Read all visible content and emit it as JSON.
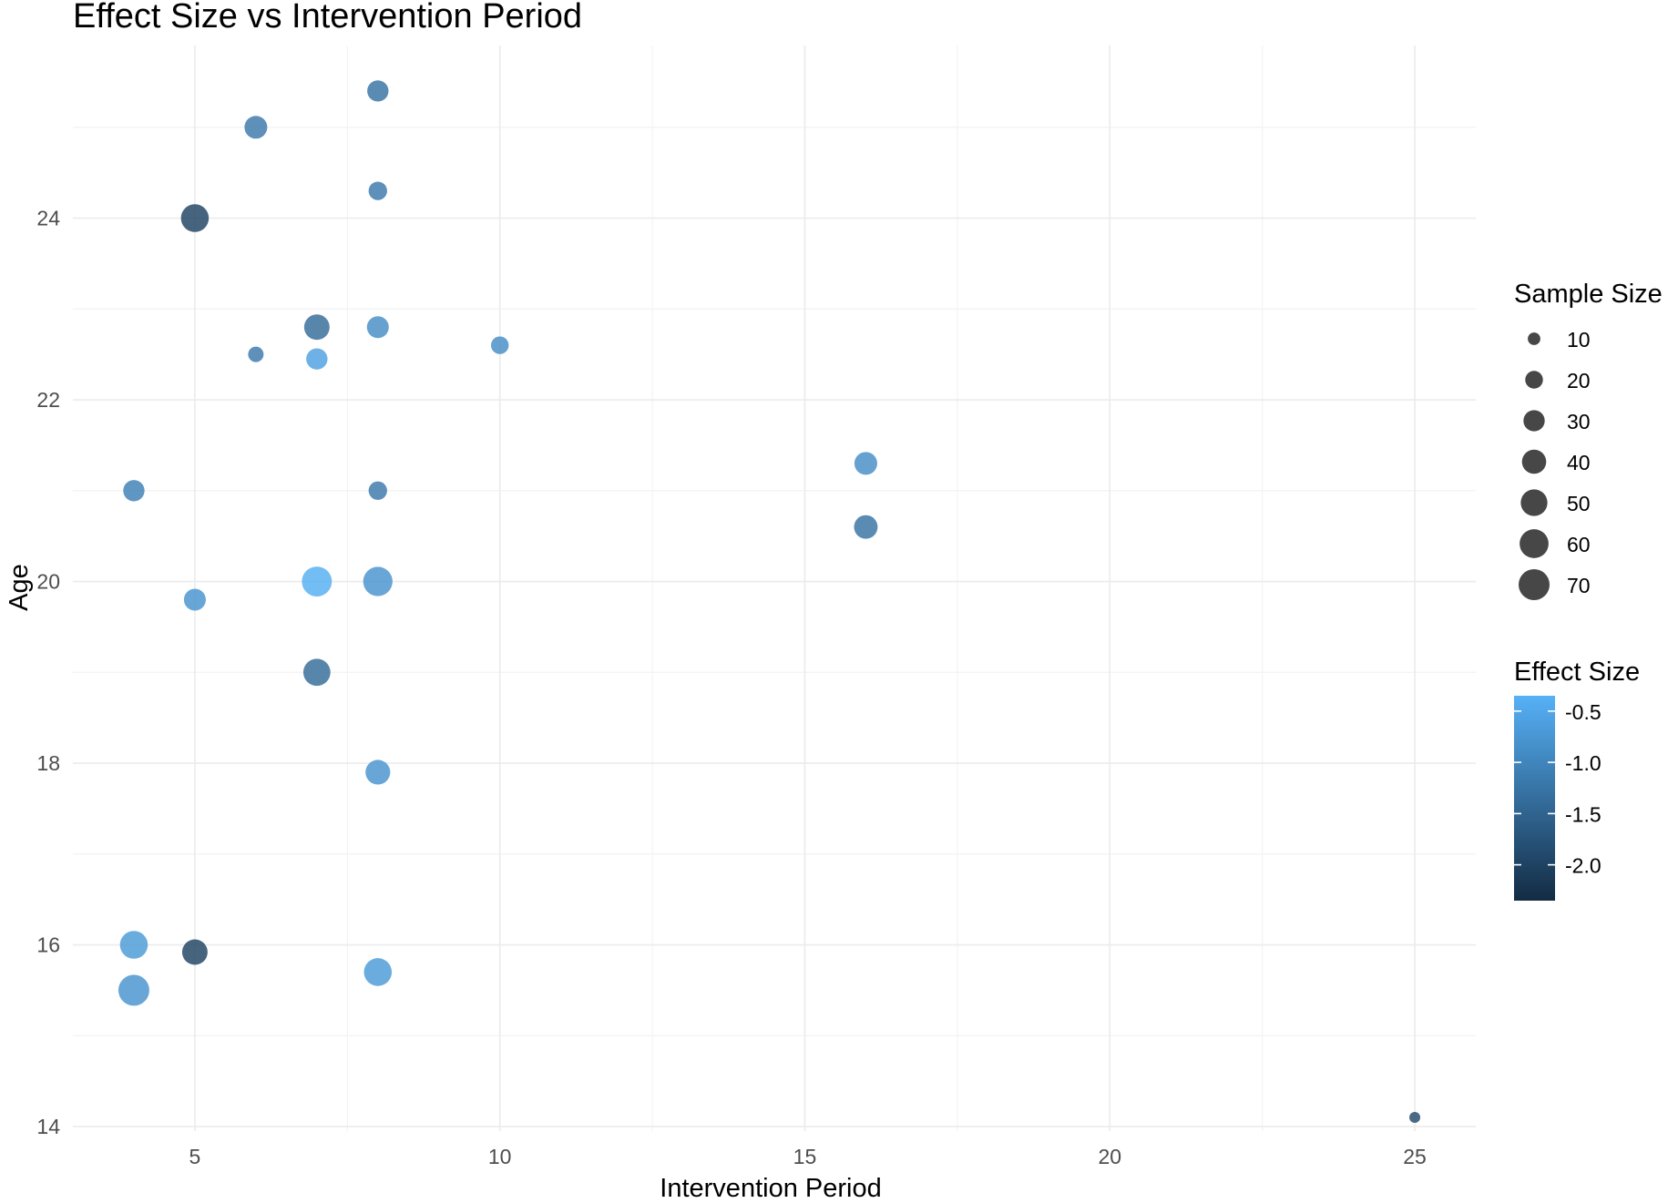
{
  "chart_data": {
    "type": "scatter",
    "title": "Effect Size vs Intervention Period",
    "xlabel": "Intervention Period",
    "ylabel": "Age",
    "xlim": [
      3,
      26
    ],
    "ylim": [
      13.95,
      25.9
    ],
    "x_ticks": [
      5,
      10,
      15,
      20,
      25
    ],
    "y_ticks": [
      14,
      16,
      18,
      20,
      22,
      24
    ],
    "grid": true,
    "points": [
      {
        "x": 8,
        "y": 25.4,
        "size": 30,
        "effect": -1.3
      },
      {
        "x": 6,
        "y": 25.0,
        "size": 35,
        "effect": -1.2
      },
      {
        "x": 8,
        "y": 24.3,
        "size": 22,
        "effect": -1.2
      },
      {
        "x": 5,
        "y": 24.0,
        "size": 55,
        "effect": -2.0
      },
      {
        "x": 7,
        "y": 22.8,
        "size": 45,
        "effect": -1.4
      },
      {
        "x": 8,
        "y": 22.8,
        "size": 32,
        "effect": -0.9
      },
      {
        "x": 6,
        "y": 22.5,
        "size": 15,
        "effect": -1.2
      },
      {
        "x": 7,
        "y": 22.45,
        "size": 30,
        "effect": -0.6
      },
      {
        "x": 10,
        "y": 22.6,
        "size": 20,
        "effect": -0.9
      },
      {
        "x": 16,
        "y": 21.3,
        "size": 35,
        "effect": -0.9
      },
      {
        "x": 4,
        "y": 21.0,
        "size": 30,
        "effect": -1.1
      },
      {
        "x": 8,
        "y": 21.0,
        "size": 22,
        "effect": -1.2
      },
      {
        "x": 16,
        "y": 20.6,
        "size": 38,
        "effect": -1.3
      },
      {
        "x": 7,
        "y": 20.0,
        "size": 65,
        "effect": -0.4
      },
      {
        "x": 8,
        "y": 20.0,
        "size": 62,
        "effect": -0.8
      },
      {
        "x": 5,
        "y": 19.8,
        "size": 32,
        "effect": -0.8
      },
      {
        "x": 7,
        "y": 19.0,
        "size": 52,
        "effect": -1.4
      },
      {
        "x": 8,
        "y": 17.9,
        "size": 42,
        "effect": -0.8
      },
      {
        "x": 4,
        "y": 16.0,
        "size": 55,
        "effect": -0.7
      },
      {
        "x": 5,
        "y": 15.92,
        "size": 45,
        "effect": -2.0
      },
      {
        "x": 8,
        "y": 15.7,
        "size": 55,
        "effect": -0.7
      },
      {
        "x": 4,
        "y": 15.5,
        "size": 70,
        "effect": -0.8
      },
      {
        "x": 25,
        "y": 14.1,
        "size": 8,
        "effect": -1.9
      }
    ],
    "legend": {
      "placement": "right",
      "size_title": "Sample Size",
      "size_values": [
        10,
        20,
        30,
        40,
        50,
        60,
        70
      ],
      "size_labels": [
        "10",
        "20",
        "30",
        "40",
        "50",
        "60",
        "70"
      ],
      "color_title": "Effect Size",
      "color_range": [
        -2.35,
        -0.35
      ],
      "color_low": "#132b43",
      "color_high": "#56b1f7",
      "color_ticks": [
        -0.5,
        -1.0,
        -1.5,
        -2.0
      ],
      "color_tick_labels": [
        "-0.5",
        "-1.0",
        "-1.5",
        "-2.0"
      ]
    }
  }
}
